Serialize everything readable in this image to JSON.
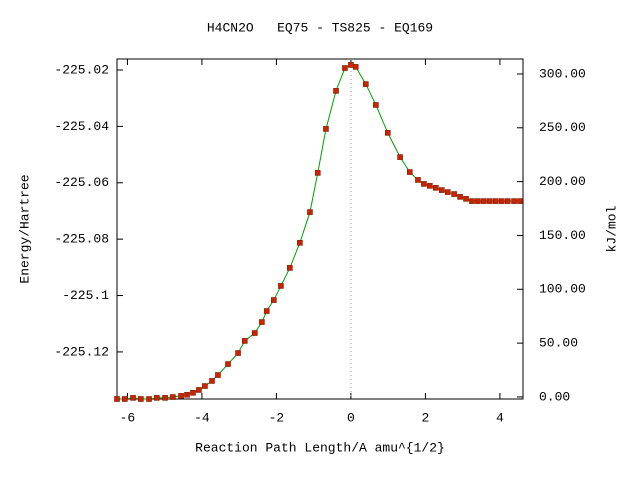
{
  "chart_data": {
    "type": "line",
    "title": "H4CN2O   EQ75 - TS825 - EQ169",
    "xlabel": "Reaction Path Length/A amu^{1/2}",
    "ylabel": "Energy/Hartree",
    "y2label": "kJ/mol",
    "x": [
      -6.28,
      -6.07,
      -5.85,
      -5.64,
      -5.42,
      -5.21,
      -4.99,
      -4.78,
      -4.56,
      -4.4,
      -4.24,
      -4.08,
      -3.92,
      -3.73,
      -3.57,
      -3.3,
      -3.03,
      -2.85,
      -2.58,
      -2.39,
      -2.26,
      -2.07,
      -1.88,
      -1.64,
      -1.37,
      -1.1,
      -0.89,
      -0.67,
      -0.4,
      -0.16,
      0.0,
      0.13,
      0.4,
      0.67,
      0.99,
      1.32,
      1.58,
      1.8,
      1.96,
      2.12,
      2.28,
      2.44,
      2.6,
      2.77,
      2.93,
      3.09,
      3.25,
      3.41,
      3.57,
      3.73,
      3.89,
      4.05,
      4.21,
      4.38,
      4.54
    ],
    "series": [
      {
        "color": "#00a000",
        "marker_color": "#cc2200",
        "values": [
          -225.1367,
          -225.1367,
          -225.1363,
          -225.1367,
          -225.1367,
          -225.1363,
          -225.1363,
          -225.136,
          -225.1356,
          -225.1352,
          -225.1345,
          -225.1335,
          -225.1321,
          -225.1303,
          -225.1282,
          -225.1243,
          -225.1204,
          -225.1161,
          -225.1133,
          -225.1094,
          -225.1055,
          -225.1016,
          -225.0966,
          -225.0902,
          -225.0813,
          -225.0704,
          -225.0565,
          -225.0409,
          -225.0274,
          -225.0193,
          -225.0182,
          -225.0189,
          -225.025,
          -225.0324,
          -225.0423,
          -225.0509,
          -225.0562,
          -225.059,
          -225.0604,
          -225.0611,
          -225.0618,
          -225.0626,
          -225.0633,
          -225.064,
          -225.065,
          -225.0657,
          -225.0665,
          -225.0665,
          -225.0665,
          -225.0665,
          -225.0665,
          -225.0665,
          -225.0665,
          -225.0665,
          -225.0665
        ]
      }
    ],
    "xlim": [
      -6.28,
      4.62
    ],
    "xticks": [
      -6,
      -4,
      -2,
      0,
      2,
      4
    ],
    "ylim": [
      -225.1367,
      -225.0161
    ],
    "yticks": [
      -225.12,
      -225.1,
      -225.08,
      -225.06,
      -225.04,
      -225.02
    ],
    "y2lim": [
      -1.9,
      313.9
    ],
    "y2ticks": [
      {
        "value": 0,
        "label": "0.00"
      },
      {
        "value": 50,
        "label": "50.00"
      },
      {
        "value": 100,
        "label": "100.00"
      },
      {
        "value": 150,
        "label": "150.00"
      },
      {
        "value": 200,
        "label": "200.00"
      },
      {
        "value": 250,
        "label": "250.00"
      },
      {
        "value": 300,
        "label": "300.00"
      }
    ],
    "vline_x": 0
  }
}
